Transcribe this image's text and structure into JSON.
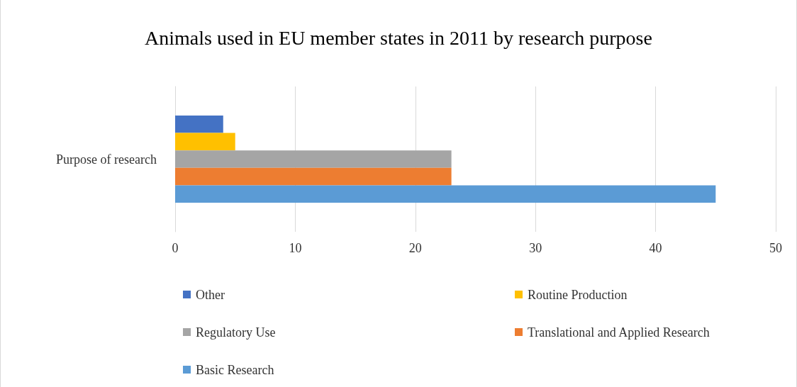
{
  "chart_data": {
    "type": "bar",
    "orientation": "horizontal",
    "title": "Animals used in EU member states in 2011 by research purpose",
    "categories": [
      "Purpose of research"
    ],
    "series": [
      {
        "name": "Other",
        "color": "#4472c4",
        "values": [
          4
        ]
      },
      {
        "name": "Routine Production",
        "color": "#ffc000",
        "values": [
          5
        ]
      },
      {
        "name": "Regulatory Use",
        "color": "#a5a5a5",
        "values": [
          23
        ]
      },
      {
        "name": "Translational and Applied Research",
        "color": "#ed7d31",
        "values": [
          23
        ]
      },
      {
        "name": "Basic Research",
        "color": "#5b9bd5",
        "values": [
          45
        ]
      }
    ],
    "xlim": [
      0,
      50
    ],
    "xticks": [
      0,
      10,
      20,
      30,
      40,
      50
    ],
    "grid": "x",
    "legend": "bottom"
  }
}
